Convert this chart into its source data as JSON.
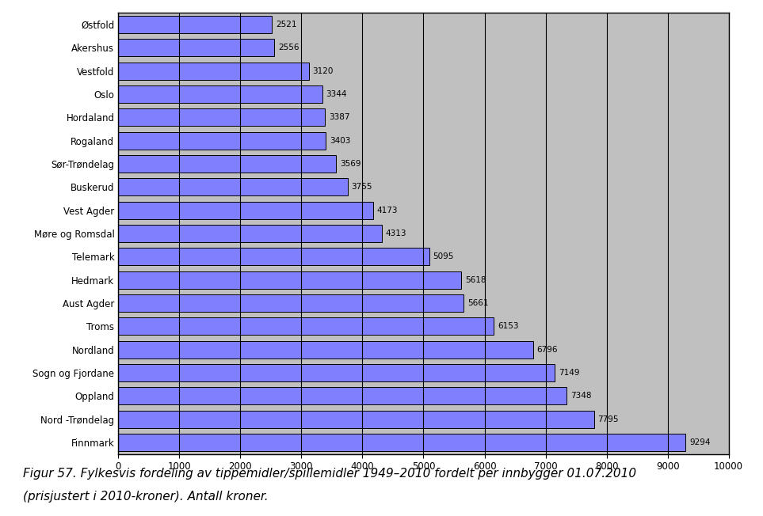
{
  "categories": [
    "Østfold",
    "Akershus",
    "Vestfold",
    "Oslo",
    "Hordaland",
    "Rogaland",
    "Sør-Trøndelag",
    "Buskerud",
    "Vest Agder",
    "Møre og Romsdal",
    "Telemark",
    "Hedmark",
    "Aust Agder",
    "Troms",
    "Nordland",
    "Sogn og Fjordane",
    "Oppland",
    "Nord -Trøndelag",
    "Finnmark"
  ],
  "values": [
    2521,
    2556,
    3120,
    3344,
    3387,
    3403,
    3569,
    3755,
    4173,
    4313,
    5095,
    5618,
    5661,
    6153,
    6796,
    7149,
    7348,
    7795,
    9294
  ],
  "bar_color": "#8080ff",
  "bar_edge_color": "#000000",
  "plot_bg_color": "#c0c0c0",
  "fig_bg_color": "#ffffff",
  "xlim": [
    0,
    10000
  ],
  "xtick_step": 1000,
  "caption_line1": "Figur 57. Fylkesvis fordeling av tippemidler/spillemidler 1949–2010 fordelt per innbygger 01.07.2010",
  "caption_line2": "(prisjustert i 2010-kroner). Antall kroner.",
  "caption_fontsize": 11,
  "value_fontsize": 7.5,
  "label_fontsize": 8.5,
  "tick_fontsize": 8.5
}
